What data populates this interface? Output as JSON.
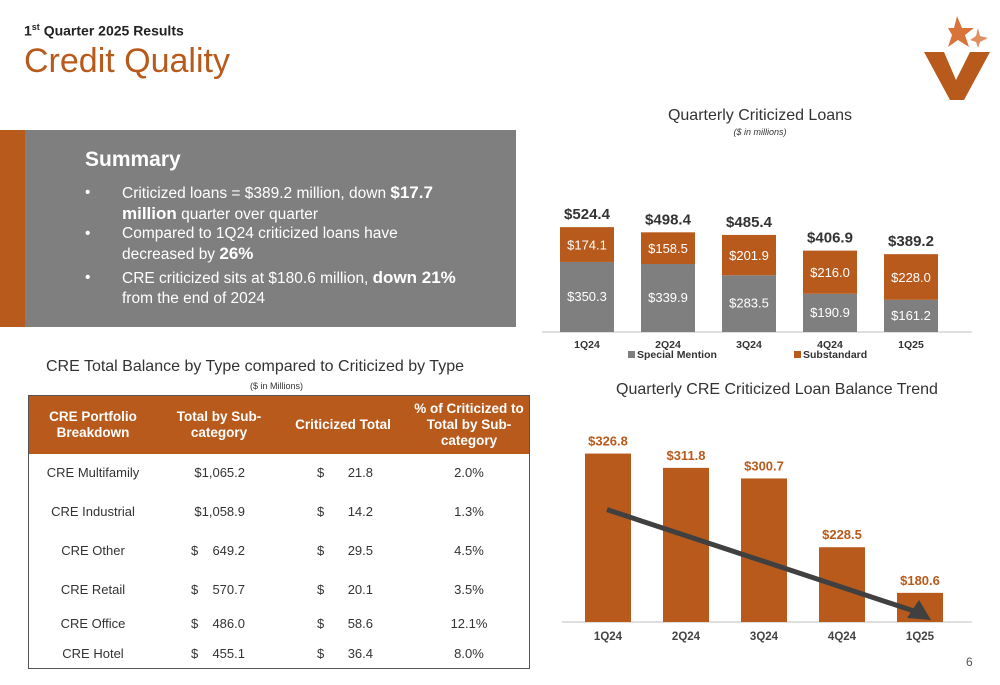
{
  "header": {
    "subtitle_prefix": "1",
    "subtitle_sup": "st",
    "subtitle_rest": " Quarter 2025 Results",
    "title": "Credit Quality"
  },
  "summary": {
    "heading": "Summary",
    "bullet_symbol": "•",
    "bullets": [
      {
        "a": "Criticized loans = $389.2 million, down ",
        "b": "$17.7 million",
        "c": " quarter over quarter"
      },
      {
        "a": "Compared to 1Q24 criticized loans have decreased by ",
        "b": "26%",
        "c": ""
      },
      {
        "a": "CRE criticized sits at $180.6 million, ",
        "b": "down 21%",
        "c": " from the end of 2024"
      }
    ]
  },
  "cre_table": {
    "title": "CRE Total Balance by Type compared to Criticized by Type",
    "note": "($ in Millions)",
    "headers": [
      "CRE Portfolio Breakdown",
      "Total by Sub-category",
      "Criticized Total",
      "% of Criticized to Total by Sub-category"
    ],
    "rows": [
      {
        "type": "CRE Multifamily",
        "total_cur": "",
        "total": "$1,065.2",
        "crit_cur": "$",
        "crit": "21.8",
        "pct": "2.0%"
      },
      {
        "type": "CRE Industrial",
        "total_cur": "",
        "total": "$1,058.9",
        "crit_cur": "$",
        "crit": "14.2",
        "pct": "1.3%"
      },
      {
        "type": "CRE Other",
        "total_cur": "$",
        "total": "649.2",
        "crit_cur": "$",
        "crit": "29.5",
        "pct": "4.5%"
      },
      {
        "type": "CRE Retail",
        "total_cur": "$",
        "total": "570.7",
        "crit_cur": "$",
        "crit": "20.1",
        "pct": "3.5%"
      },
      {
        "type": "CRE Office",
        "total_cur": "$",
        "total": "486.0",
        "crit_cur": "$",
        "crit": "58.6",
        "pct": "12.1%"
      },
      {
        "type": "CRE Hotel",
        "total_cur": "$",
        "total": "455.1",
        "crit_cur": "$",
        "crit": "36.4",
        "pct": "8.0%"
      }
    ]
  },
  "colors": {
    "accent": "#b85a1b",
    "gray": "#7f7f7f",
    "arrow": "#404040"
  },
  "page_number": "6",
  "chart_data": [
    {
      "type": "bar",
      "stacked": true,
      "title": "Quarterly Criticized Loans",
      "subtitle": "($ in millions)",
      "categories": [
        "1Q24",
        "2Q24",
        "3Q24",
        "4Q24",
        "1Q25"
      ],
      "series": [
        {
          "name": "Special Mention",
          "color": "#7f7f7f",
          "values": [
            350.3,
            339.9,
            283.5,
            190.9,
            161.2
          ],
          "labels": [
            "$350.3",
            "$339.9",
            "$283.5",
            "$190.9",
            "$161.2"
          ]
        },
        {
          "name": "Substandard",
          "color": "#b85a1b",
          "values": [
            174.1,
            158.5,
            201.9,
            216.0,
            228.0
          ],
          "labels": [
            "$174.1",
            "$158.5",
            "$201.9",
            "$216.0",
            "$228.0"
          ]
        }
      ],
      "totals": [
        "$524.4",
        "$498.4",
        "$485.4",
        "$406.9",
        "$389.2"
      ],
      "legend": "bottom",
      "ylim": [
        0,
        600
      ]
    },
    {
      "type": "bar",
      "title": "Quarterly CRE Criticized Loan Balance Trend",
      "categories": [
        "1Q24",
        "2Q24",
        "3Q24",
        "4Q24",
        "1Q25"
      ],
      "values": [
        326.8,
        311.8,
        300.7,
        228.5,
        180.6
      ],
      "labels": [
        "$326.8",
        "$311.8",
        "$300.7",
        "$228.5",
        "$180.6"
      ],
      "trend_arrow": "down",
      "ylim": [
        150,
        340
      ]
    }
  ]
}
